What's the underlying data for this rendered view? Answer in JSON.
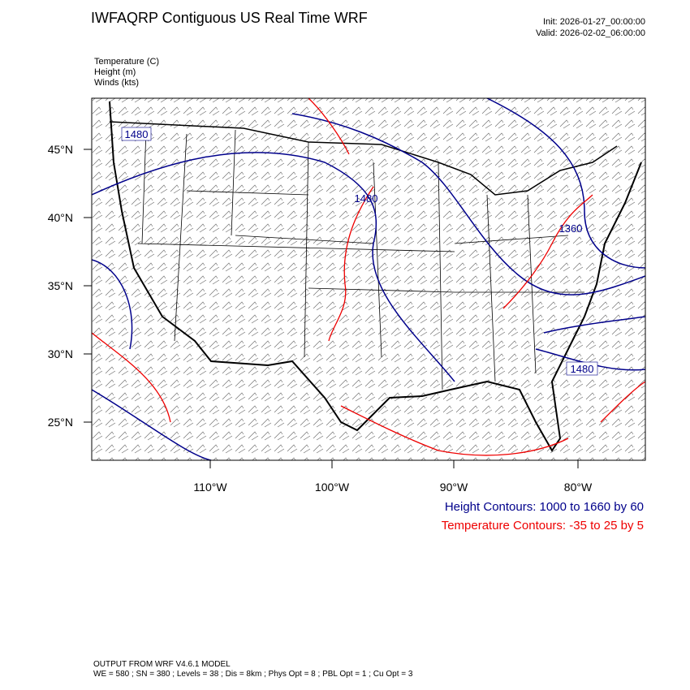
{
  "header": {
    "title": "IWFAQRP Contiguous US Real Time WRF",
    "init": "Init: 2026-01-27_00:00:00",
    "valid": "Valid: 2026-02-02_06:00:00"
  },
  "fields": [
    "Temperature   (C)",
    "Height   (m)",
    "Winds   (kts)"
  ],
  "lat_labels": [
    "45°N",
    "40°N",
    "35°N",
    "30°N",
    "25°N"
  ],
  "lon_labels": [
    "110°W",
    "100°W",
    "90°W",
    "80°W"
  ],
  "contour_labels": [
    "1480",
    "1480",
    "1360",
    "1480"
  ],
  "legend": {
    "height": "Height Contours: 1000 to 1660 by 60",
    "temperature": "Temperature Contours: -35 to 25 by 5"
  },
  "footer": [
    "OUTPUT FROM WRF V4.6.1 MODEL",
    "WE = 580 ; SN = 380 ; Levels = 38 ; Dis = 8km ; Phys Opt = 8 ; PBL Opt = 1 ; Cu Opt = 3"
  ]
}
